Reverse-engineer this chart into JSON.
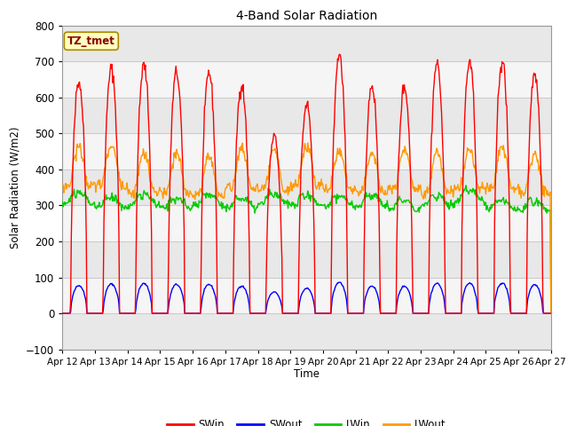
{
  "title": "4-Band Solar Radiation",
  "ylabel": "Solar Radiation (W/m2)",
  "xlabel": "Time",
  "ylim": [
    -100,
    800
  ],
  "yticks": [
    -100,
    0,
    100,
    200,
    300,
    400,
    500,
    600,
    700,
    800
  ],
  "x_labels": [
    "Apr 12",
    "Apr 13",
    "Apr 14",
    "Apr 15",
    "Apr 16",
    "Apr 17",
    "Apr 18",
    "Apr 19",
    "Apr 20",
    "Apr 21",
    "Apr 22",
    "Apr 23",
    "Apr 24",
    "Apr 25",
    "Apr 26",
    "Apr 27"
  ],
  "label_box_text": "TZ_tmet",
  "legend_entries": [
    "SWin",
    "SWout",
    "LWin",
    "LWout"
  ],
  "legend_colors": [
    "#ff0000",
    "#0000ff",
    "#00cc00",
    "#ff9900"
  ],
  "fig_bg_color": "#ffffff",
  "plot_bg_color": "#ffffff",
  "band_color_light": "#e8e8e8",
  "band_color_dark": "#d0d0d0",
  "grid_color": "#cccccc",
  "n_days": 15,
  "hours_per_day": 24,
  "dt_hours": 0.5,
  "swin_peaks": [
    645,
    680,
    690,
    670,
    670,
    635,
    490,
    580,
    720,
    635,
    630,
    695,
    700,
    700,
    665
  ]
}
